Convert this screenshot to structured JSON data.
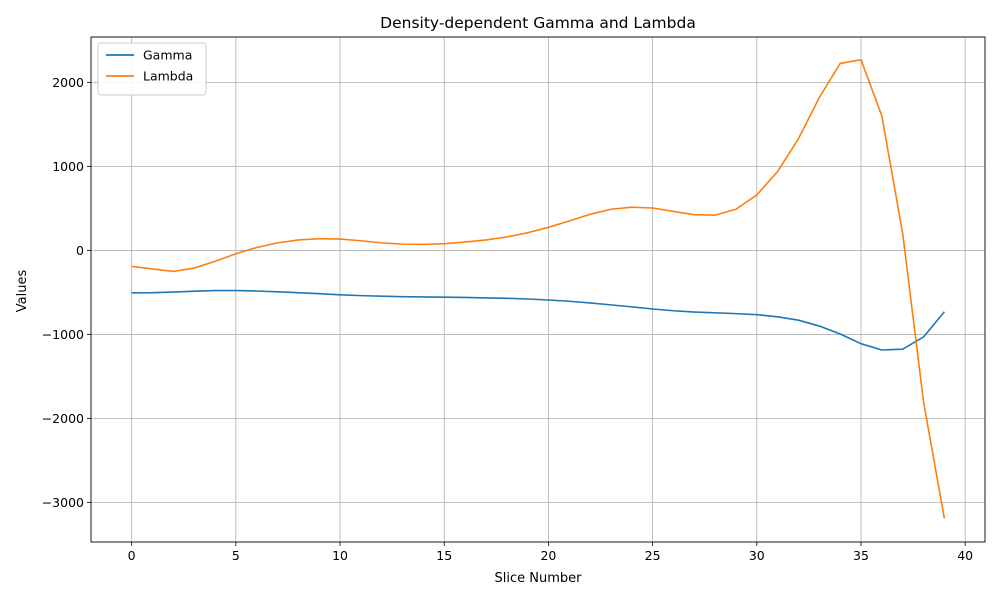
{
  "chart_data": {
    "type": "line",
    "title": "Density-dependent Gamma and Lambda",
    "xlabel": "Slice Number",
    "ylabel": "Values",
    "xlim": [
      -1.95,
      40.95
    ],
    "ylim": [
      -3470,
      2540
    ],
    "xticks": [
      0,
      5,
      10,
      15,
      20,
      25,
      30,
      35,
      40
    ],
    "yticks": [
      -3000,
      -2000,
      -1000,
      0,
      1000,
      2000
    ],
    "ytick_labels": [
      "−3000",
      "−2000",
      "−1000",
      "0",
      "1000",
      "2000"
    ],
    "grid": true,
    "legend_position": "upper-left",
    "x": [
      0,
      1,
      2,
      3,
      4,
      5,
      6,
      7,
      8,
      9,
      10,
      11,
      12,
      13,
      14,
      15,
      16,
      17,
      18,
      19,
      20,
      21,
      22,
      23,
      24,
      25,
      26,
      27,
      28,
      29,
      30,
      31,
      32,
      33,
      34,
      35,
      36,
      37,
      38,
      39
    ],
    "series": [
      {
        "name": "Gamma",
        "color": "#1f77b4",
        "values": [
          -505,
          -503,
          -495,
          -485,
          -478,
          -478,
          -483,
          -492,
          -503,
          -515,
          -528,
          -538,
          -545,
          -550,
          -553,
          -556,
          -560,
          -565,
          -570,
          -578,
          -590,
          -605,
          -625,
          -648,
          -672,
          -697,
          -718,
          -733,
          -743,
          -752,
          -765,
          -790,
          -830,
          -900,
          -995,
          -1110,
          -1185,
          -1175,
          -1030,
          -730
        ]
      },
      {
        "name": "Lambda",
        "color": "#ff7f0e",
        "values": [
          -190,
          -220,
          -250,
          -210,
          -130,
          -40,
          35,
          90,
          125,
          140,
          135,
          115,
          90,
          75,
          72,
          80,
          100,
          125,
          160,
          210,
          275,
          350,
          430,
          490,
          515,
          505,
          465,
          425,
          420,
          490,
          660,
          940,
          1330,
          1820,
          2225,
          2270,
          1600,
          200,
          -1800,
          -3190
        ]
      }
    ]
  }
}
